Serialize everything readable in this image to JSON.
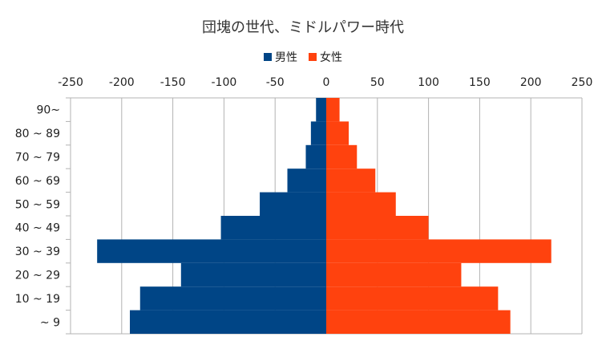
{
  "colors": {
    "male": "#004586",
    "female": "#ff420e",
    "grid": "#b3b3b3"
  },
  "chart_data": {
    "type": "bar",
    "orientation": "horizontal",
    "subtype": "population-pyramid",
    "title": "団塊の世代、ミドルパワー時代",
    "xlim": [
      -250,
      250
    ],
    "xticks": [
      "-250",
      "-200",
      "-150",
      "-100",
      "-50",
      "0",
      "50",
      "100",
      "150",
      "200",
      "250"
    ],
    "grid": true,
    "legend_position": "top",
    "categories": [
      "90~",
      "80 ~ 89",
      "70 ~ 79",
      "60 ~ 69",
      "50 ~ 59",
      "40 ~ 49",
      "30 ~ 39",
      "20 ~ 29",
      "10 ~ 19",
      "~ 9"
    ],
    "series": [
      {
        "name": "男性",
        "values": [
          -10,
          -15,
          -20,
          -38,
          -65,
          -103,
          -224,
          -142,
          -182,
          -192
        ]
      },
      {
        "name": "女性",
        "values": [
          13,
          22,
          30,
          48,
          68,
          100,
          220,
          132,
          168,
          180
        ]
      }
    ]
  }
}
